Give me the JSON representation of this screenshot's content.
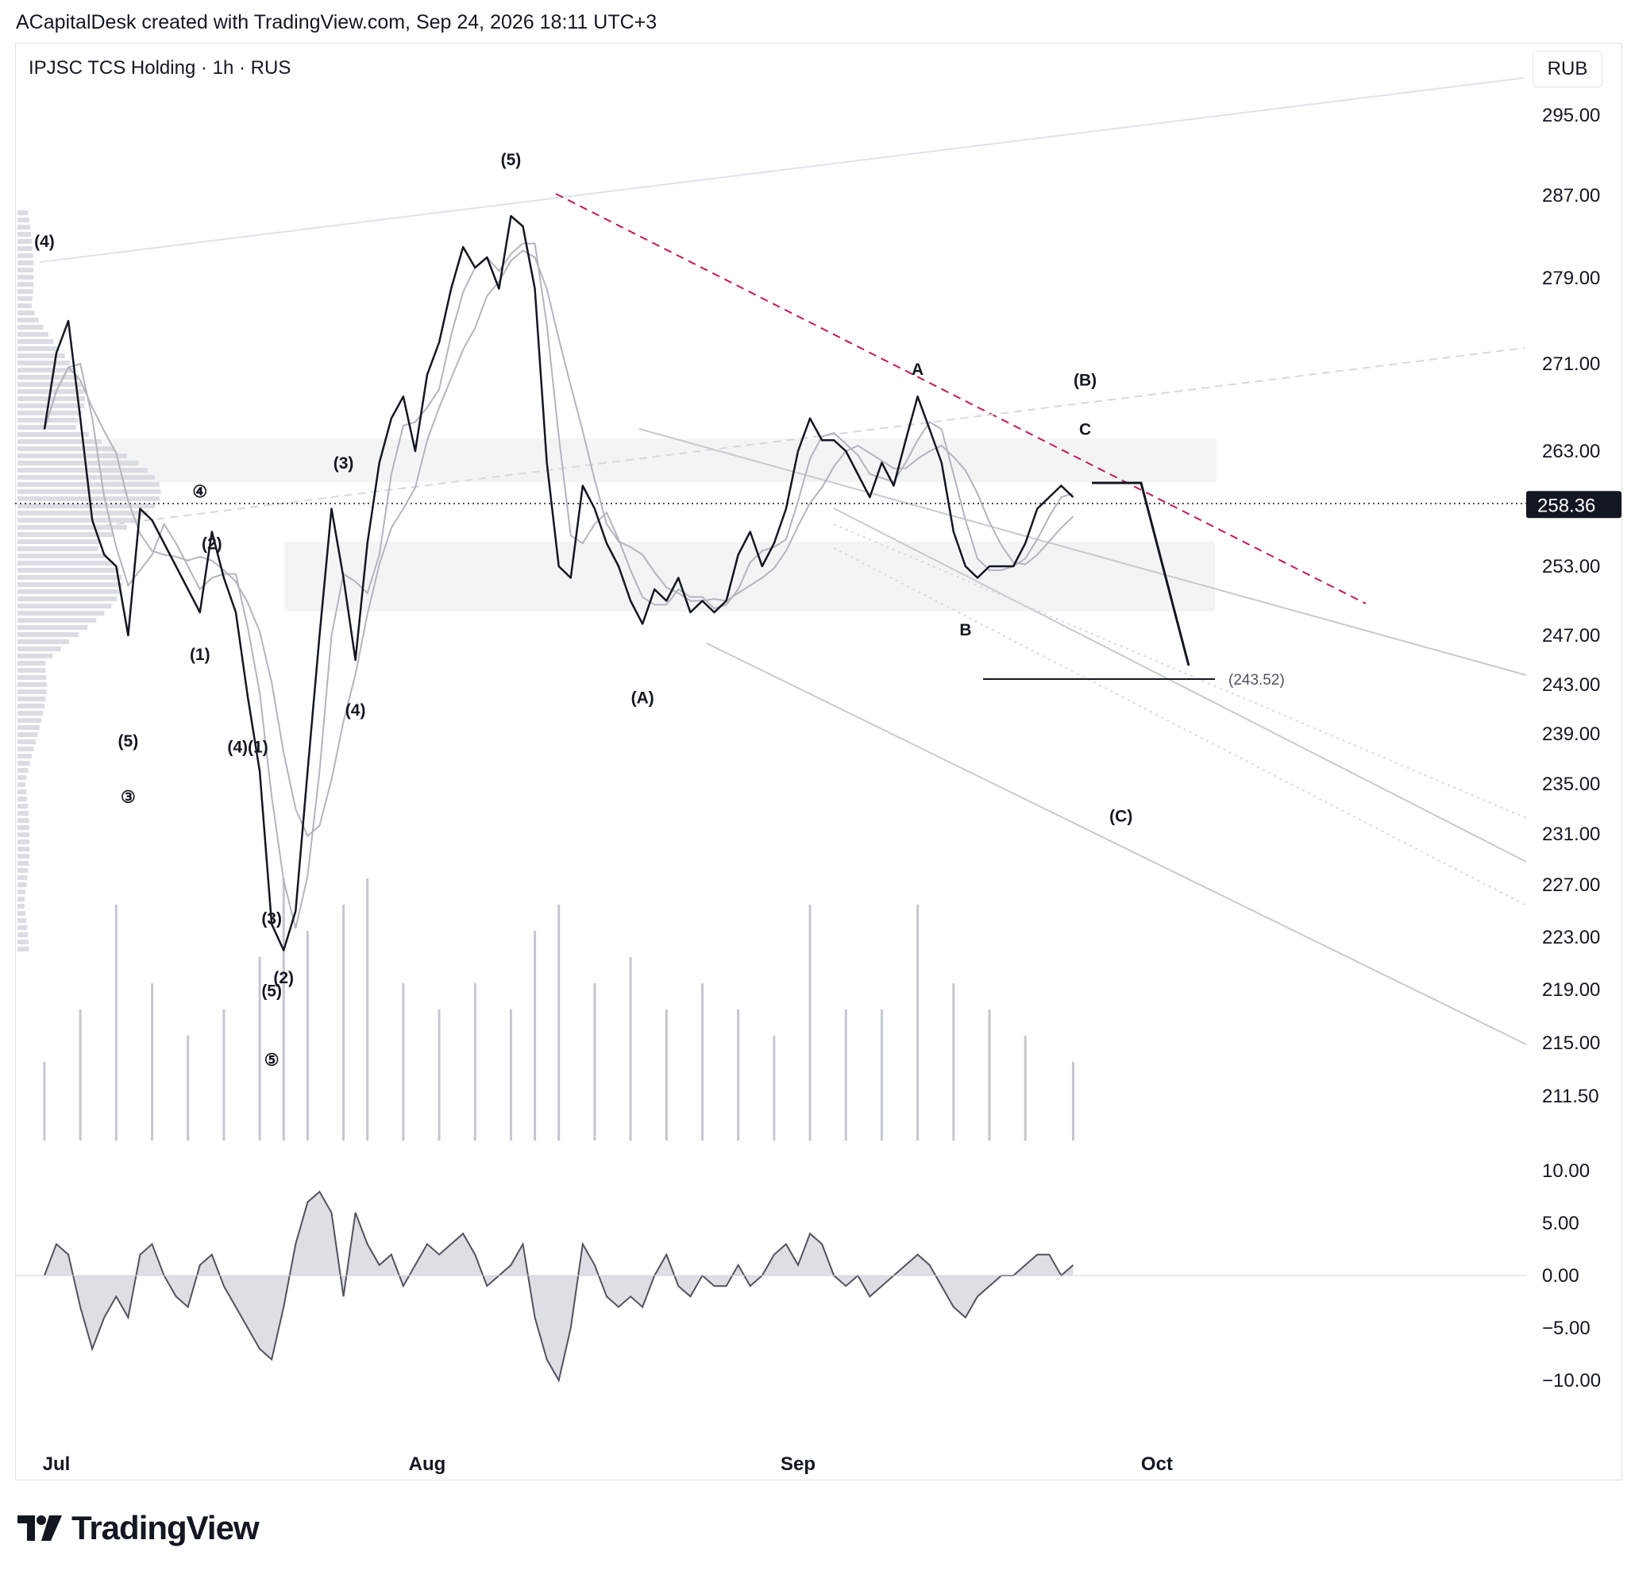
{
  "header": {
    "credit": "ACapitalDesk created with TradingView.com, Sep 24, 2026 18:11 UTC+3",
    "symbol": "IPJSC TCS Holding · 1h · RUS",
    "currency": "RUB"
  },
  "brand": {
    "name": "TradingView",
    "icon": "tradingview-logo-icon"
  },
  "colors": {
    "price": "#131722",
    "ma": "#b2b5be",
    "resistance": "#c2185b",
    "circled_wave": "#2962ff",
    "zone": "#ececec",
    "oscillator_fill": "#d1d4dc"
  },
  "chart_data": [
    {
      "type": "line",
      "title": "IPJSC TCS Holding · 1h · RUS",
      "ylim": [
        208,
        300
      ],
      "y_ticks": [
        "295.00",
        "287.00",
        "279.00",
        "271.00",
        "263.00",
        "253.00",
        "247.00",
        "243.00",
        "239.00",
        "235.00",
        "231.00",
        "227.00",
        "223.00",
        "219.00",
        "215.00",
        "211.50"
      ],
      "x_ticks": [
        "Jul",
        "Aug",
        "Sep",
        "Oct"
      ],
      "x_tick_dates": [
        "2026-07-01",
        "2026-08-01",
        "2026-09-01",
        "2026-10-01"
      ],
      "current_price": "258.36",
      "target_label": "(243.52)",
      "target": 243.52,
      "grid": false,
      "series": [
        {
          "values": [
            [
              "2026-06-30",
              265
            ],
            [
              "2026-07-01",
              272
            ],
            [
              "2026-07-02",
              275
            ],
            [
              "2026-07-03",
              266
            ],
            [
              "2026-07-04",
              257
            ],
            [
              "2026-07-05",
              254
            ],
            [
              "2026-07-06",
              253
            ],
            [
              "2026-07-07",
              247
            ],
            [
              "2026-07-08",
              258
            ],
            [
              "2026-07-09",
              257
            ],
            [
              "2026-07-10",
              255
            ],
            [
              "2026-07-11",
              253
            ],
            [
              "2026-07-12",
              251
            ],
            [
              "2026-07-13",
              249
            ],
            [
              "2026-07-14",
              256
            ],
            [
              "2026-07-15",
              252
            ],
            [
              "2026-07-16",
              249
            ],
            [
              "2026-07-17",
              242
            ],
            [
              "2026-07-18",
              236
            ],
            [
              "2026-07-19",
              224
            ],
            [
              "2026-07-20",
              222
            ],
            [
              "2026-07-21",
              225
            ],
            [
              "2026-07-22",
              236
            ],
            [
              "2026-07-23",
              247
            ],
            [
              "2026-07-24",
              258
            ],
            [
              "2026-07-25",
              252
            ],
            [
              "2026-07-26",
              245
            ],
            [
              "2026-07-27",
              255
            ],
            [
              "2026-07-28",
              262
            ],
            [
              "2026-07-29",
              266
            ],
            [
              "2026-07-30",
              268
            ],
            [
              "2026-07-31",
              263
            ],
            [
              "2026-08-01",
              270
            ],
            [
              "2026-08-02",
              273
            ],
            [
              "2026-08-03",
              278
            ],
            [
              "2026-08-04",
              282
            ],
            [
              "2026-08-05",
              280
            ],
            [
              "2026-08-06",
              281
            ],
            [
              "2026-08-07",
              278
            ],
            [
              "2026-08-08",
              285
            ],
            [
              "2026-08-09",
              284
            ],
            [
              "2026-08-10",
              278
            ],
            [
              "2026-08-11",
              262
            ],
            [
              "2026-08-12",
              253
            ],
            [
              "2026-08-13",
              252
            ],
            [
              "2026-08-14",
              260
            ],
            [
              "2026-08-15",
              258
            ],
            [
              "2026-08-16",
              255
            ],
            [
              "2026-08-17",
              253
            ],
            [
              "2026-08-18",
              250
            ],
            [
              "2026-08-19",
              248
            ],
            [
              "2026-08-20",
              251
            ],
            [
              "2026-08-21",
              250
            ],
            [
              "2026-08-22",
              252
            ],
            [
              "2026-08-23",
              249
            ],
            [
              "2026-08-24",
              250
            ],
            [
              "2026-08-25",
              249
            ],
            [
              "2026-08-26",
              250
            ],
            [
              "2026-08-27",
              254
            ],
            [
              "2026-08-28",
              256
            ],
            [
              "2026-08-29",
              253
            ],
            [
              "2026-08-30",
              255
            ],
            [
              "2026-08-31",
              258
            ],
            [
              "2026-09-01",
              263
            ],
            [
              "2026-09-02",
              266
            ],
            [
              "2026-09-03",
              264
            ],
            [
              "2026-09-04",
              264
            ],
            [
              "2026-09-05",
              263
            ],
            [
              "2026-09-06",
              261
            ],
            [
              "2026-09-07",
              259
            ],
            [
              "2026-09-08",
              262
            ],
            [
              "2026-09-09",
              260
            ],
            [
              "2026-09-10",
              264
            ],
            [
              "2026-09-11",
              268
            ],
            [
              "2026-09-12",
              265
            ],
            [
              "2026-09-13",
              262
            ],
            [
              "2026-09-14",
              256
            ],
            [
              "2026-09-15",
              253
            ],
            [
              "2026-09-16",
              252
            ],
            [
              "2026-09-17",
              253
            ],
            [
              "2026-09-18",
              253
            ],
            [
              "2026-09-19",
              253
            ],
            [
              "2026-09-20",
              255
            ],
            [
              "2026-09-21",
              258
            ],
            [
              "2026-09-22",
              259
            ],
            [
              "2026-09-23",
              260
            ],
            [
              "2026-09-24",
              259
            ]
          ]
        }
      ],
      "volume": [
        [
          "2026-06-30",
          0.3
        ],
        [
          "2026-07-03",
          0.5
        ],
        [
          "2026-07-06",
          0.9
        ],
        [
          "2026-07-09",
          0.6
        ],
        [
          "2026-07-12",
          0.4
        ],
        [
          "2026-07-15",
          0.5
        ],
        [
          "2026-07-18",
          0.7
        ],
        [
          "2026-07-20",
          1.0
        ],
        [
          "2026-07-22",
          0.8
        ],
        [
          "2026-07-25",
          0.9
        ],
        [
          "2026-07-27",
          1.0
        ],
        [
          "2026-07-30",
          0.6
        ],
        [
          "2026-08-02",
          0.5
        ],
        [
          "2026-08-05",
          0.6
        ],
        [
          "2026-08-08",
          0.5
        ],
        [
          "2026-08-10",
          0.8
        ],
        [
          "2026-08-12",
          0.9
        ],
        [
          "2026-08-15",
          0.6
        ],
        [
          "2026-08-18",
          0.7
        ],
        [
          "2026-08-21",
          0.5
        ],
        [
          "2026-08-24",
          0.6
        ],
        [
          "2026-08-27",
          0.5
        ],
        [
          "2026-08-30",
          0.4
        ],
        [
          "2026-09-02",
          0.9
        ],
        [
          "2026-09-05",
          0.5
        ],
        [
          "2026-09-08",
          0.5
        ],
        [
          "2026-09-11",
          0.9
        ],
        [
          "2026-09-14",
          0.6
        ],
        [
          "2026-09-17",
          0.5
        ],
        [
          "2026-09-20",
          0.4
        ],
        [
          "2026-09-24",
          0.3
        ]
      ],
      "annotations": [
        {
          "text": "(4)",
          "x": "2026-06-30",
          "y": 282
        },
        {
          "text": "(5)",
          "x": "2026-07-07",
          "y": 238
        },
        {
          "text": "③",
          "x": "2026-07-07",
          "y": 233.5,
          "circled": true
        },
        {
          "text": "④",
          "x": "2026-07-13",
          "y": 259,
          "circled": true
        },
        {
          "text": "(2)",
          "x": "2026-07-14",
          "y": 254.5
        },
        {
          "text": "(1)",
          "x": "2026-07-13",
          "y": 245
        },
        {
          "text": "(4)(1)",
          "x": "2026-07-17",
          "y": 237.5
        },
        {
          "text": "(3)",
          "x": "2026-07-19",
          "y": 224
        },
        {
          "text": "(2)",
          "x": "2026-07-20",
          "y": 219.5
        },
        {
          "text": "(5)",
          "x": "2026-07-19",
          "y": 218.5
        },
        {
          "text": "⑤",
          "x": "2026-07-19",
          "y": 213.5,
          "circled": true
        },
        {
          "text": "(3)",
          "x": "2026-07-25",
          "y": 261.5
        },
        {
          "text": "(4)",
          "x": "2026-07-26",
          "y": 240.5
        },
        {
          "text": "(5)",
          "x": "2026-08-08",
          "y": 290
        },
        {
          "text": "(A)",
          "x": "2026-08-19",
          "y": 241.5
        },
        {
          "text": "A",
          "x": "2026-09-11",
          "y": 270
        },
        {
          "text": "B",
          "x": "2026-09-15",
          "y": 247
        },
        {
          "text": "(B)",
          "x": "2026-09-25",
          "y": 269
        },
        {
          "text": "C",
          "x": "2026-09-25",
          "y": 264.5
        },
        {
          "text": "(C)",
          "x": "2026-09-28",
          "y": 232
        }
      ]
    },
    {
      "type": "area",
      "ylim": [
        -12,
        12
      ],
      "y_ticks": [
        "10.00",
        "5.00",
        "0.00",
        "−5.00",
        "−10.00"
      ],
      "series": [
        {
          "values": [
            [
              "2026-06-30",
              0
            ],
            [
              "2026-07-01",
              3
            ],
            [
              "2026-07-02",
              2
            ],
            [
              "2026-07-03",
              -3
            ],
            [
              "2026-07-04",
              -7
            ],
            [
              "2026-07-05",
              -4
            ],
            [
              "2026-07-06",
              -2
            ],
            [
              "2026-07-07",
              -4
            ],
            [
              "2026-07-08",
              2
            ],
            [
              "2026-07-09",
              3
            ],
            [
              "2026-07-10",
              0
            ],
            [
              "2026-07-11",
              -2
            ],
            [
              "2026-07-12",
              -3
            ],
            [
              "2026-07-13",
              1
            ],
            [
              "2026-07-14",
              2
            ],
            [
              "2026-07-15",
              -1
            ],
            [
              "2026-07-16",
              -3
            ],
            [
              "2026-07-17",
              -5
            ],
            [
              "2026-07-18",
              -7
            ],
            [
              "2026-07-19",
              -8
            ],
            [
              "2026-07-20",
              -3
            ],
            [
              "2026-07-21",
              3
            ],
            [
              "2026-07-22",
              7
            ],
            [
              "2026-07-23",
              8
            ],
            [
              "2026-07-24",
              6
            ],
            [
              "2026-07-25",
              -2
            ],
            [
              "2026-07-26",
              6
            ],
            [
              "2026-07-27",
              3
            ],
            [
              "2026-07-28",
              1
            ],
            [
              "2026-07-29",
              2
            ],
            [
              "2026-07-30",
              -1
            ],
            [
              "2026-07-31",
              1
            ],
            [
              "2026-08-01",
              3
            ],
            [
              "2026-08-02",
              2
            ],
            [
              "2026-08-03",
              3
            ],
            [
              "2026-08-04",
              4
            ],
            [
              "2026-08-05",
              2
            ],
            [
              "2026-08-06",
              -1
            ],
            [
              "2026-08-07",
              0
            ],
            [
              "2026-08-08",
              1
            ],
            [
              "2026-08-09",
              3
            ],
            [
              "2026-08-10",
              -4
            ],
            [
              "2026-08-11",
              -8
            ],
            [
              "2026-08-12",
              -10
            ],
            [
              "2026-08-13",
              -5
            ],
            [
              "2026-08-14",
              3
            ],
            [
              "2026-08-15",
              1
            ],
            [
              "2026-08-16",
              -2
            ],
            [
              "2026-08-17",
              -3
            ],
            [
              "2026-08-18",
              -2
            ],
            [
              "2026-08-19",
              -3
            ],
            [
              "2026-08-20",
              0
            ],
            [
              "2026-08-21",
              2
            ],
            [
              "2026-08-22",
              -1
            ],
            [
              "2026-08-23",
              -2
            ],
            [
              "2026-08-24",
              0
            ],
            [
              "2026-08-25",
              -1
            ],
            [
              "2026-08-26",
              -1
            ],
            [
              "2026-08-27",
              1
            ],
            [
              "2026-08-28",
              -1
            ],
            [
              "2026-08-29",
              0
            ],
            [
              "2026-08-30",
              2
            ],
            [
              "2026-08-31",
              3
            ],
            [
              "2026-09-01",
              1
            ],
            [
              "2026-09-02",
              4
            ],
            [
              "2026-09-03",
              3
            ],
            [
              "2026-09-04",
              0
            ],
            [
              "2026-09-05",
              -1
            ],
            [
              "2026-09-06",
              0
            ],
            [
              "2026-09-07",
              -2
            ],
            [
              "2026-09-08",
              -1
            ],
            [
              "2026-09-09",
              0
            ],
            [
              "2026-09-10",
              1
            ],
            [
              "2026-09-11",
              2
            ],
            [
              "2026-09-12",
              1
            ],
            [
              "2026-09-13",
              -1
            ],
            [
              "2026-09-14",
              -3
            ],
            [
              "2026-09-15",
              -4
            ],
            [
              "2026-09-16",
              -2
            ],
            [
              "2026-09-17",
              -1
            ],
            [
              "2026-09-18",
              0
            ],
            [
              "2026-09-19",
              0
            ],
            [
              "2026-09-20",
              1
            ],
            [
              "2026-09-21",
              2
            ],
            [
              "2026-09-22",
              2
            ],
            [
              "2026-09-23",
              0
            ],
            [
              "2026-09-24",
              1
            ]
          ]
        }
      ]
    }
  ]
}
